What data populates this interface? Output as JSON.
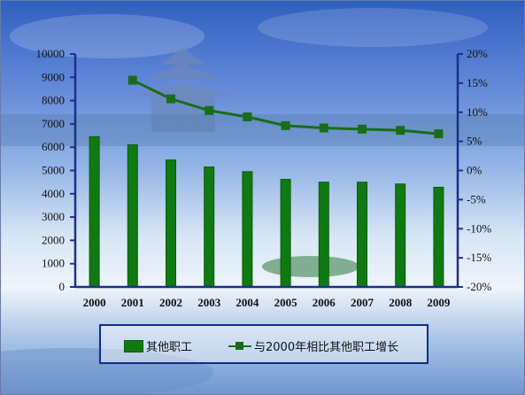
{
  "chart_data": {
    "type": "bar",
    "categories": [
      "2000",
      "2001",
      "2002",
      "2003",
      "2004",
      "2005",
      "2006",
      "2007",
      "2008",
      "2009"
    ],
    "series": [
      {
        "name": "其他职工",
        "type": "bar",
        "axis": "left",
        "values": [
          6450,
          6100,
          5450,
          5150,
          4950,
          4620,
          4500,
          4500,
          4420,
          4280
        ]
      },
      {
        "name": "与2000年相比其他职工增长",
        "type": "line",
        "axis": "right",
        "values": [
          null,
          15.5,
          12.3,
          10.3,
          9.2,
          7.7,
          7.3,
          7.1,
          6.9,
          6.3
        ]
      }
    ],
    "left_axis": {
      "min": 0,
      "max": 10000,
      "step": 1000,
      "ticks": [
        "0",
        "1000",
        "2000",
        "3000",
        "4000",
        "5000",
        "6000",
        "7000",
        "8000",
        "9000",
        "10000"
      ]
    },
    "right_axis": {
      "min": -20,
      "max": 20,
      "step": 5,
      "ticks": [
        "-20%",
        "-15%",
        "-10%",
        "-5%",
        "0%",
        "5%",
        "10%",
        "15%",
        "20%"
      ]
    },
    "legend_position": "bottom",
    "grid": false,
    "colors": {
      "bar": "#0f7a12",
      "bar_edge": "#0a5a0c",
      "line": "#1a6c1a",
      "axis": "#1d2f8c"
    }
  }
}
